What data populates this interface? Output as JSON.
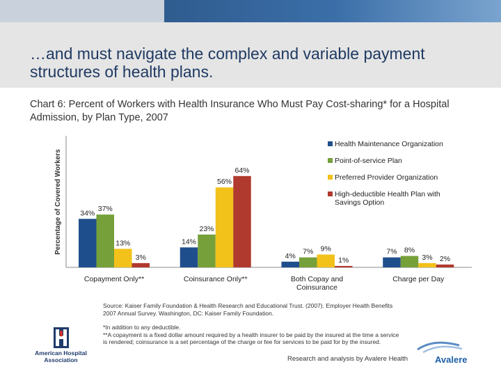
{
  "slide": {
    "title": "…and must navigate the complex and variable payment structures of health plans."
  },
  "chart_data": {
    "type": "bar",
    "title": "Chart 6: Percent of Workers with Health Insurance Who Must Pay Cost-sharing* for a Hospital Admission, by Plan Type, 2007",
    "ylabel": "Percentage of Covered Workers",
    "xlabel": "",
    "ylim": [
      0,
      70
    ],
    "grid": false,
    "legend_position": "top-right",
    "categories": [
      "Copayment Only**",
      "Coinsurance Only**",
      "Both Copay and Coinsurance",
      "Charge per Day"
    ],
    "series": [
      {
        "name": "Health Maintenance Organization",
        "color": "#1f4e8c",
        "values": [
          34,
          14,
          4,
          7
        ]
      },
      {
        "name": "Point-of-service Plan",
        "color": "#76a03a",
        "values": [
          37,
          23,
          7,
          8
        ]
      },
      {
        "name": "Preferred Provider Organization",
        "color": "#f2c11a",
        "values": [
          13,
          56,
          9,
          3
        ]
      },
      {
        "name": "High-deductible Health Plan with Savings Option",
        "color": "#b03a2e",
        "values": [
          3,
          64,
          1,
          2
        ]
      }
    ],
    "data_labels": [
      [
        "34%",
        "14%",
        "4%",
        "7%"
      ],
      [
        "37%",
        "23%",
        "7%",
        "8%"
      ],
      [
        "13%",
        "56%",
        "9%",
        "3%"
      ],
      [
        "3%",
        "64%",
        "1%",
        "2%"
      ]
    ]
  },
  "footer": {
    "source": "Source: Kaiser Family Foundation & Health Research and Educational Trust. (2007). Employer Health Benefits 2007 Annual Survey. Washington, DC: Kaiser Family Foundation.",
    "note1": "*In addition to any deductible.",
    "note2": "**A copayment is a fixed dollar amount required by a health insurer to be paid by the insured at the time a service is rendered; coinsurance is a set percentage of the charge or fee for services to be paid for by the insured.",
    "credit": "Research and analysis by Avalere Health"
  },
  "logos": {
    "aha": "American Hospital Association",
    "avalere": "Avalere"
  }
}
